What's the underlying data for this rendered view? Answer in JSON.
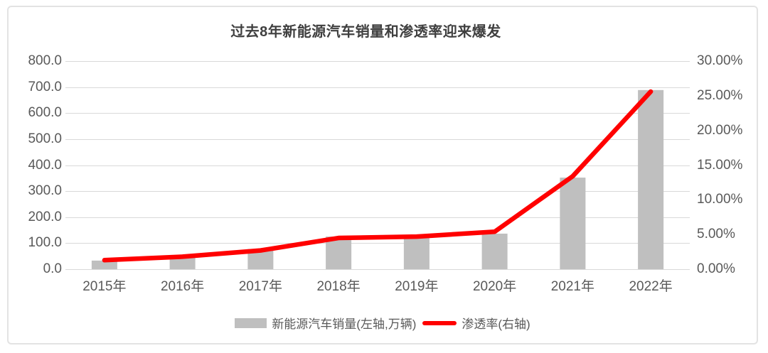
{
  "chart_data": {
    "type": "bar+line combo",
    "title": "过去8年新能源汽车销量和渗透率迎来爆发",
    "categories": [
      "2015年",
      "2016年",
      "2017年",
      "2018年",
      "2019年",
      "2020年",
      "2021年",
      "2022年"
    ],
    "series": [
      {
        "name": "新能源汽车销量(左轴,万辆)",
        "type": "bar",
        "axis": "left",
        "color": "#bfbfbf",
        "values": [
          33.1,
          50.7,
          77.7,
          125.6,
          120.6,
          136.7,
          352.1,
          688.7
        ]
      },
      {
        "name": "渗透率(右轴)",
        "type": "line",
        "axis": "right",
        "color": "#ff0000",
        "values": [
          1.3,
          1.8,
          2.7,
          4.5,
          4.7,
          5.4,
          13.4,
          25.6
        ]
      }
    ],
    "left_axis": {
      "min": 0,
      "max": 800,
      "step": 100,
      "tick_labels": [
        "800.0",
        "700.0",
        "600.0",
        "500.0",
        "400.0",
        "300.0",
        "200.0",
        "100.0",
        "0.0"
      ]
    },
    "right_axis": {
      "min": 0,
      "max": 30,
      "step": 5,
      "tick_labels": [
        "30.00%",
        "25.00%",
        "20.00%",
        "15.00%",
        "10.00%",
        "5.00%",
        "0.00%"
      ]
    },
    "grid": true,
    "legend_position": "bottom",
    "theme": {
      "grid_color": "#d9d9d9",
      "tick_color": "#595959",
      "title_color": "#3f3f3f",
      "card_border_color": "#e3e3e3",
      "background": "#ffffff"
    }
  }
}
